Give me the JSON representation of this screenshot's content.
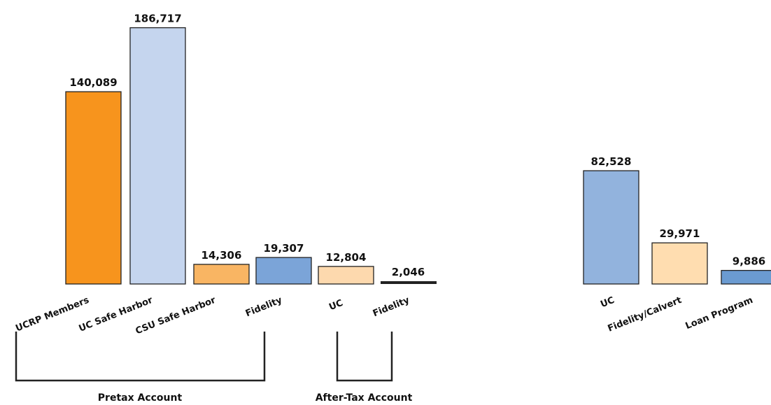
{
  "chart_data": [
    {
      "type": "bar",
      "categories": [
        "UCRP Members",
        "UC Safe Harbor",
        "CSU Safe Harbor",
        "Fidelity",
        "UC",
        "Fidelity"
      ],
      "values": [
        140089,
        186717,
        14306,
        19307,
        12804,
        2046
      ],
      "value_labels": [
        "140,089",
        "186,717",
        "14,306",
        "19,307",
        "12,804",
        "2,046"
      ],
      "colors": [
        "#F7941D",
        "#C5D5EE",
        "#F9B563",
        "#7BA4D8",
        "#FDD9AE",
        "#222222"
      ],
      "groups": [
        {
          "label": "Pretax Account",
          "from": 0,
          "to": 3
        },
        {
          "label": "After-Tax Account",
          "from": 4,
          "to": 5
        }
      ],
      "title": "",
      "xlabel": "",
      "ylabel": "",
      "grid": false
    },
    {
      "type": "bar",
      "categories": [
        "UC",
        "Fidelity/Calvert",
        "Loan Program"
      ],
      "values": [
        82528,
        29971,
        9886
      ],
      "value_labels": [
        "82,528",
        "29,971",
        "9,886"
      ],
      "colors": [
        "#92B3DD",
        "#FFDDB0",
        "#6B9BD1"
      ],
      "title": "",
      "xlabel": "",
      "ylabel": "",
      "grid": false
    }
  ]
}
